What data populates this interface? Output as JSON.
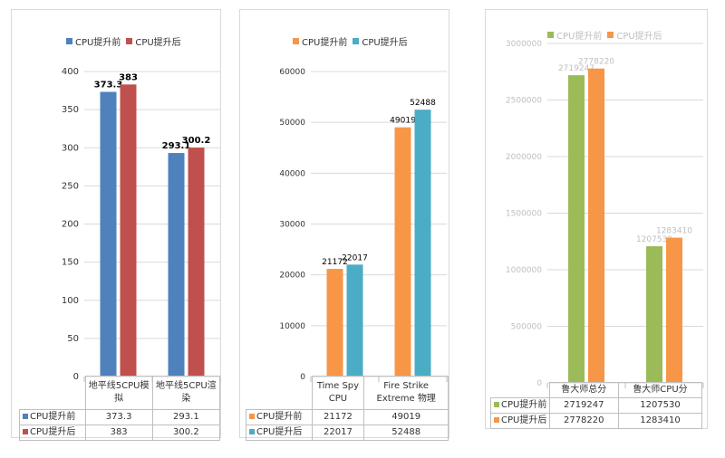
{
  "chart_data": [
    {
      "type": "bar",
      "categories": [
        "地平线5CPU模拟",
        "地平线5CPU渲染"
      ],
      "series": [
        {
          "name": "CPU提升前",
          "values": [
            373.3,
            293.1
          ],
          "color": "#4f81bd"
        },
        {
          "name": "CPU提升后",
          "values": [
            383,
            300.2
          ],
          "color": "#c0504d"
        }
      ],
      "data_labels": [
        [
          "373.3",
          "293.1"
        ],
        [
          "383",
          "300.2"
        ]
      ],
      "ylim": [
        0,
        400
      ],
      "yticks": [
        0,
        50,
        100,
        150,
        200,
        250,
        300,
        350,
        400
      ],
      "legend": "top",
      "table_values": [
        [
          "373.3",
          "293.1"
        ],
        [
          "383",
          "300.2"
        ]
      ]
    },
    {
      "type": "bar",
      "categories": [
        "Time Spy CPU",
        "Fire Strike Extreme 物理"
      ],
      "series": [
        {
          "name": "CPU提升前",
          "values": [
            21172,
            49019
          ],
          "color": "#f79646"
        },
        {
          "name": "CPU提升后",
          "values": [
            22017,
            52488
          ],
          "color": "#4bacc6"
        }
      ],
      "data_labels": [
        [
          "21172",
          "49019"
        ],
        [
          "22017",
          "52488"
        ]
      ],
      "ylim": [
        0,
        60000
      ],
      "yticks": [
        0,
        10000,
        20000,
        30000,
        40000,
        50000,
        60000
      ],
      "legend": "top",
      "table_values": [
        [
          "21172",
          "49019"
        ],
        [
          "22017",
          "52488"
        ]
      ]
    },
    {
      "type": "bar",
      "categories": [
        "鲁大师总分",
        "鲁大师CPU分"
      ],
      "series": [
        {
          "name": "CPU提升前",
          "values": [
            2719247,
            1207530
          ],
          "color": "#9bbb59"
        },
        {
          "name": "CPU提升后",
          "values": [
            2778220,
            1283410
          ],
          "color": "#f79646"
        }
      ],
      "data_labels": [
        [
          "2719247",
          "1207530"
        ],
        [
          "2778220",
          "1283410"
        ]
      ],
      "ylim": [
        0,
        3000000
      ],
      "yticks": [
        0,
        500000,
        1000000,
        1500000,
        2000000,
        2500000,
        3000000
      ],
      "legend": "top",
      "table_values": [
        [
          "2719247",
          "1207530"
        ],
        [
          "2778220",
          "1283410"
        ]
      ]
    }
  ]
}
